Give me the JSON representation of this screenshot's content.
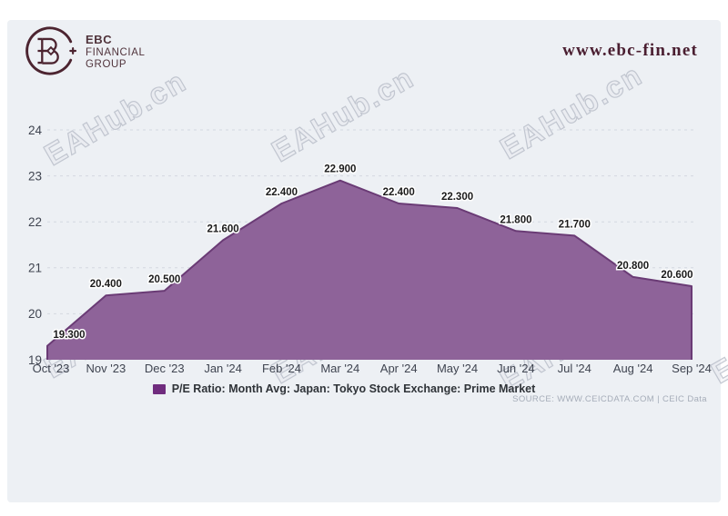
{
  "brand": {
    "name_line1": "EBC",
    "name_line2": "FINANCIAL",
    "name_line3": "GROUP",
    "website": "www.ebc-fin.net",
    "logo_color": "#4c2430"
  },
  "watermark": {
    "text": "EAHub.cn"
  },
  "chart_data": {
    "type": "area",
    "title": "P/E Ratio: Month Avg: Japan: Tokyo Stock Exchange: Prime Market",
    "categories": [
      "Oct '23",
      "Nov '23",
      "Dec '23",
      "Jan '24",
      "Feb '24",
      "Mar '24",
      "Apr '24",
      "May '24",
      "Jun '24",
      "Jul '24",
      "Aug '24",
      "Sep '24"
    ],
    "series": [
      {
        "name": "P/E Ratio: Month Avg: Japan: Tokyo Stock Exchange: Prime Market",
        "values": [
          19.3,
          20.4,
          20.5,
          21.6,
          22.4,
          22.9,
          22.4,
          22.3,
          21.8,
          21.7,
          20.8,
          20.6
        ]
      }
    ],
    "data_labels": [
      "19.300",
      "20.400",
      "20.500",
      "21.600",
      "22.400",
      "22.900",
      "22.400",
      "22.300",
      "21.800",
      "21.700",
      "20.800",
      "20.600"
    ],
    "ylim": [
      19,
      24
    ],
    "yticks": [
      19,
      20,
      21,
      22,
      23,
      24
    ],
    "grid": "horizontal-dashed",
    "legend_position": "bottom",
    "colors": {
      "area_fill": "#8e6399",
      "area_stroke": "#6a3b75",
      "legend_marker": "#702c7e",
      "grid_line": "#d4d8e0",
      "tick_text": "#3f4450",
      "data_label_text": "#1b1b1b",
      "panel_background": "#edf0f4"
    }
  },
  "legend": {
    "label": "P/E Ratio: Month Avg: Japan: Tokyo Stock Exchange: Prime Market"
  },
  "source": {
    "text": "SOURCE: WWW.CEICDATA.COM | CEIC Data"
  }
}
